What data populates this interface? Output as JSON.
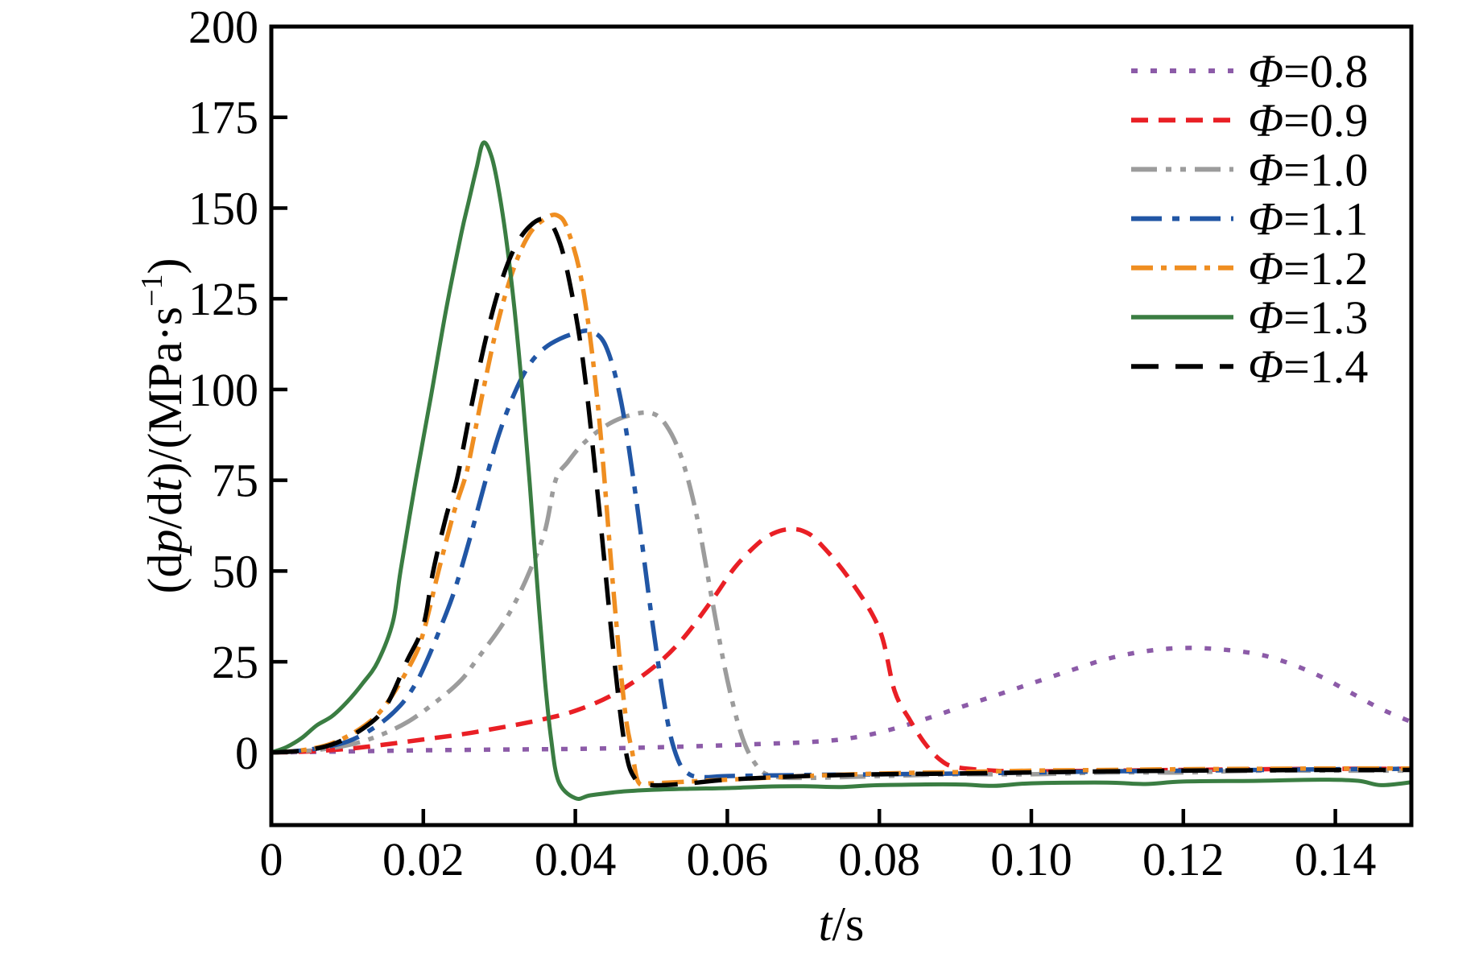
{
  "chart_data": {
    "type": "line",
    "title": "",
    "xlabel": "t/s",
    "xlabel_rich": [
      {
        "t": "t",
        "i": 1
      },
      {
        "t": "/s"
      }
    ],
    "ylabel": "(dp/dt)/(MPa·s−1)",
    "ylabel_rich": [
      {
        "t": "(d"
      },
      {
        "t": "p",
        "i": 1
      },
      {
        "t": "/d"
      },
      {
        "t": "t",
        "i": 1
      },
      {
        "t": ")/(MPa·s"
      },
      {
        "t": "−1",
        "sup": 1
      },
      {
        "t": ")"
      }
    ],
    "xlim": [
      0,
      0.15
    ],
    "ylim": [
      -20,
      200
    ],
    "x_ticks": [
      0,
      0.02,
      0.04,
      0.06,
      0.08,
      0.1,
      0.12,
      0.14
    ],
    "x_tick_labels": [
      "0",
      "0.02",
      "0.04",
      "0.06",
      "0.08",
      "0.10",
      "0.12",
      "0.14"
    ],
    "y_ticks": [
      0,
      25,
      50,
      75,
      100,
      125,
      150,
      175,
      200
    ],
    "y_tick_labels": [
      "0",
      "25",
      "50",
      "75",
      "100",
      "125",
      "150",
      "175",
      "200"
    ],
    "grid": false,
    "legend_position": "upper right",
    "series": [
      {
        "name": "phi-0.8",
        "label": "Φ=0.8",
        "color": "#8c5ba8",
        "dash": "8 16",
        "width": 5.5,
        "points": [
          [
            0,
            0
          ],
          [
            0.01,
            0.3
          ],
          [
            0.02,
            0.6
          ],
          [
            0.03,
            0.8
          ],
          [
            0.04,
            1
          ],
          [
            0.05,
            1.4
          ],
          [
            0.06,
            2
          ],
          [
            0.065,
            2.4
          ],
          [
            0.07,
            2.8
          ],
          [
            0.075,
            3.6
          ],
          [
            0.08,
            5.5
          ],
          [
            0.085,
            8.5
          ],
          [
            0.09,
            12
          ],
          [
            0.095,
            15.5
          ],
          [
            0.1,
            19
          ],
          [
            0.105,
            22.5
          ],
          [
            0.11,
            25.8
          ],
          [
            0.115,
            27.9
          ],
          [
            0.12,
            28.8
          ],
          [
            0.125,
            28.4
          ],
          [
            0.13,
            27
          ],
          [
            0.134,
            24.5
          ],
          [
            0.138,
            21
          ],
          [
            0.142,
            16.5
          ],
          [
            0.146,
            12
          ],
          [
            0.15,
            8.4
          ]
        ]
      },
      {
        "name": "phi-0.9",
        "label": "Φ=0.9",
        "color": "#e91f25",
        "dash": "21 13",
        "width": 5.5,
        "points": [
          [
            0,
            0
          ],
          [
            0.005,
            0.3
          ],
          [
            0.01,
            1
          ],
          [
            0.015,
            2.2
          ],
          [
            0.02,
            3.6
          ],
          [
            0.025,
            5
          ],
          [
            0.03,
            6.8
          ],
          [
            0.035,
            8.8
          ],
          [
            0.04,
            11.5
          ],
          [
            0.045,
            16
          ],
          [
            0.05,
            23
          ],
          [
            0.054,
            31
          ],
          [
            0.058,
            42
          ],
          [
            0.061,
            51
          ],
          [
            0.064,
            57.5
          ],
          [
            0.066,
            60.3
          ],
          [
            0.068,
            61.5
          ],
          [
            0.07,
            61
          ],
          [
            0.072,
            58
          ],
          [
            0.076,
            48
          ],
          [
            0.08,
            34
          ],
          [
            0.082,
            17
          ],
          [
            0.084,
            9
          ],
          [
            0.086,
            2.5
          ],
          [
            0.088,
            -2
          ],
          [
            0.09,
            -4
          ],
          [
            0.095,
            -5
          ],
          [
            0.1,
            -5.2
          ],
          [
            0.11,
            -5
          ],
          [
            0.12,
            -4.8
          ],
          [
            0.13,
            -4.6
          ],
          [
            0.14,
            -4.5
          ],
          [
            0.15,
            -4.5
          ]
        ]
      },
      {
        "name": "phi-1.0",
        "label": "Φ=1.0",
        "color": "#9c9c9c",
        "dash": "32 11 7 11 7 11",
        "width": 5.5,
        "points": [
          [
            0,
            0
          ],
          [
            0.005,
            0.5
          ],
          [
            0.01,
            2
          ],
          [
            0.014,
            4.5
          ],
          [
            0.018,
            8.5
          ],
          [
            0.022,
            14.5
          ],
          [
            0.025,
            20
          ],
          [
            0.027,
            25.5
          ],
          [
            0.03,
            34
          ],
          [
            0.032,
            41
          ],
          [
            0.034,
            50
          ],
          [
            0.036,
            61
          ],
          [
            0.0374,
            75
          ],
          [
            0.039,
            80
          ],
          [
            0.041,
            85
          ],
          [
            0.044,
            90
          ],
          [
            0.047,
            92.8
          ],
          [
            0.05,
            93.5
          ],
          [
            0.052,
            90
          ],
          [
            0.054,
            81
          ],
          [
            0.056,
            65
          ],
          [
            0.058,
            42
          ],
          [
            0.06,
            20
          ],
          [
            0.062,
            4
          ],
          [
            0.064,
            -4
          ],
          [
            0.066,
            -6.5
          ],
          [
            0.07,
            -7
          ],
          [
            0.08,
            -6.5
          ],
          [
            0.09,
            -6
          ],
          [
            0.1,
            -6
          ],
          [
            0.11,
            -5.5
          ],
          [
            0.12,
            -5.5
          ],
          [
            0.13,
            -5
          ],
          [
            0.14,
            -5
          ],
          [
            0.15,
            -5
          ]
        ]
      },
      {
        "name": "phi-1.1",
        "label": "Φ=1.1",
        "color": "#2156a5",
        "dash": "38 13 9 13",
        "width": 5.5,
        "points": [
          [
            0,
            0
          ],
          [
            0.005,
            0.8
          ],
          [
            0.01,
            3
          ],
          [
            0.014,
            7.5
          ],
          [
            0.017,
            13
          ],
          [
            0.019,
            19
          ],
          [
            0.0204,
            25
          ],
          [
            0.022,
            33
          ],
          [
            0.024,
            44
          ],
          [
            0.026,
            58
          ],
          [
            0.0282,
            75
          ],
          [
            0.03,
            88
          ],
          [
            0.032,
            99
          ],
          [
            0.034,
            107
          ],
          [
            0.036,
            111.5
          ],
          [
            0.038,
            114
          ],
          [
            0.04,
            115.5
          ],
          [
            0.042,
            116
          ],
          [
            0.044,
            112
          ],
          [
            0.046,
            97
          ],
          [
            0.048,
            70
          ],
          [
            0.05,
            38
          ],
          [
            0.052,
            10
          ],
          [
            0.0535,
            -2
          ],
          [
            0.055,
            -6
          ],
          [
            0.057,
            -6.8
          ],
          [
            0.06,
            -6.5
          ],
          [
            0.07,
            -6.2
          ],
          [
            0.08,
            -6
          ],
          [
            0.09,
            -5.8
          ],
          [
            0.1,
            -5.5
          ],
          [
            0.11,
            -5.2
          ],
          [
            0.12,
            -5
          ],
          [
            0.13,
            -4.8
          ],
          [
            0.14,
            -4.6
          ],
          [
            0.15,
            -4.5
          ]
        ]
      },
      {
        "name": "phi-1.2",
        "label": "Φ=1.2",
        "color": "#ef8e21",
        "dash": "27 10 7 10",
        "width": 5.5,
        "points": [
          [
            0,
            0
          ],
          [
            0.004,
            0.6
          ],
          [
            0.008,
            2.5
          ],
          [
            0.012,
            7
          ],
          [
            0.015,
            13
          ],
          [
            0.0185,
            25
          ],
          [
            0.02,
            33
          ],
          [
            0.022,
            50
          ],
          [
            0.024,
            66
          ],
          [
            0.0254,
            75
          ],
          [
            0.026,
            80
          ],
          [
            0.028,
            101
          ],
          [
            0.03,
            120
          ],
          [
            0.032,
            134
          ],
          [
            0.034,
            143
          ],
          [
            0.036,
            147
          ],
          [
            0.0376,
            148
          ],
          [
            0.039,
            144
          ],
          [
            0.041,
            128
          ],
          [
            0.043,
            95
          ],
          [
            0.045,
            45
          ],
          [
            0.0465,
            12
          ],
          [
            0.0475,
            0
          ],
          [
            0.0483,
            -8.2
          ],
          [
            0.05,
            -8.5
          ],
          [
            0.055,
            -8
          ],
          [
            0.06,
            -7.5
          ],
          [
            0.07,
            -6.5
          ],
          [
            0.08,
            -5.8
          ],
          [
            0.09,
            -5.4
          ],
          [
            0.1,
            -5
          ],
          [
            0.11,
            -4.8
          ],
          [
            0.12,
            -4.6
          ],
          [
            0.13,
            -4.5
          ],
          [
            0.14,
            -4.4
          ],
          [
            0.15,
            -4.4
          ]
        ]
      },
      {
        "name": "phi-1.3",
        "label": "Φ=1.3",
        "color": "#3a7d42",
        "dash": "",
        "width": 5,
        "points": [
          [
            0,
            0
          ],
          [
            0.002,
            1.5
          ],
          [
            0.004,
            4
          ],
          [
            0.006,
            7.5
          ],
          [
            0.008,
            10
          ],
          [
            0.01,
            14
          ],
          [
            0.012,
            19
          ],
          [
            0.014,
            25
          ],
          [
            0.016,
            36
          ],
          [
            0.017,
            50
          ],
          [
            0.019,
            75
          ],
          [
            0.021,
            98
          ],
          [
            0.023,
            122
          ],
          [
            0.025,
            143
          ],
          [
            0.026,
            152
          ],
          [
            0.027,
            161
          ],
          [
            0.0279,
            168
          ],
          [
            0.029,
            164
          ],
          [
            0.03,
            154
          ],
          [
            0.031,
            140
          ],
          [
            0.032,
            122
          ],
          [
            0.033,
            100
          ],
          [
            0.034,
            74
          ],
          [
            0.035,
            46
          ],
          [
            0.036,
            20
          ],
          [
            0.0368,
            4
          ],
          [
            0.0378,
            -8
          ],
          [
            0.04,
            -12.6
          ],
          [
            0.042,
            -11.8
          ],
          [
            0.046,
            -10.8
          ],
          [
            0.05,
            -10.3
          ],
          [
            0.055,
            -10
          ],
          [
            0.06,
            -9.8
          ],
          [
            0.065,
            -9.4
          ],
          [
            0.07,
            -9.3
          ],
          [
            0.075,
            -9.5
          ],
          [
            0.08,
            -9
          ],
          [
            0.09,
            -8.8
          ],
          [
            0.095,
            -9.2
          ],
          [
            0.1,
            -8.5
          ],
          [
            0.11,
            -8.3
          ],
          [
            0.115,
            -8.7
          ],
          [
            0.12,
            -8
          ],
          [
            0.13,
            -7.8
          ],
          [
            0.138,
            -7.5
          ],
          [
            0.143,
            -7.8
          ],
          [
            0.146,
            -9
          ],
          [
            0.15,
            -8.2
          ]
        ]
      },
      {
        "name": "phi-1.4",
        "label": "Φ=1.4",
        "color": "#000000",
        "dash": "34 21",
        "width": 5.5,
        "points": [
          [
            0,
            0
          ],
          [
            0.004,
            0.5
          ],
          [
            0.008,
            2.2
          ],
          [
            0.012,
            6.5
          ],
          [
            0.015,
            12.5
          ],
          [
            0.0178,
            25
          ],
          [
            0.02,
            35
          ],
          [
            0.0213,
            50
          ],
          [
            0.023,
            65
          ],
          [
            0.0244,
            75
          ],
          [
            0.026,
            92
          ],
          [
            0.028,
            112
          ],
          [
            0.03,
            128
          ],
          [
            0.032,
            139
          ],
          [
            0.034,
            145
          ],
          [
            0.036,
            147
          ],
          [
            0.0375,
            143
          ],
          [
            0.039,
            132
          ],
          [
            0.041,
            108
          ],
          [
            0.043,
            70
          ],
          [
            0.045,
            28
          ],
          [
            0.0465,
            2
          ],
          [
            0.0478,
            -7
          ],
          [
            0.05,
            -9
          ],
          [
            0.055,
            -8.5
          ],
          [
            0.06,
            -7.5
          ],
          [
            0.07,
            -6.5
          ],
          [
            0.08,
            -6
          ],
          [
            0.09,
            -5.8
          ],
          [
            0.1,
            -5.5
          ],
          [
            0.11,
            -5.2
          ],
          [
            0.12,
            -5
          ],
          [
            0.13,
            -4.9
          ],
          [
            0.14,
            -4.8
          ],
          [
            0.15,
            -4.8
          ]
        ]
      }
    ]
  }
}
